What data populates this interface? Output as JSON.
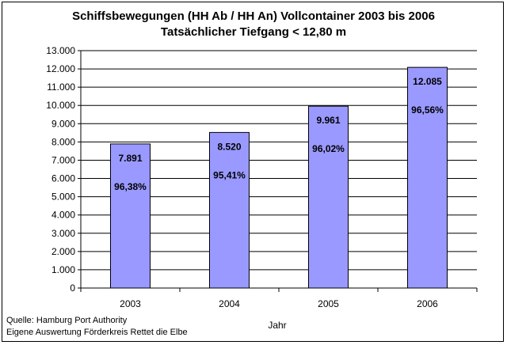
{
  "chart_data": {
    "type": "bar",
    "title": "Schiffsbewegungen (HH Ab / HH An) Vollcontainer  2003 bis 2006",
    "subtitle": "Tatsächlicher Tiefgang < 12,80 m",
    "categories": [
      "2003",
      "2004",
      "2005",
      "2006"
    ],
    "values": [
      7891,
      8520,
      9961,
      12085
    ],
    "value_labels": [
      "7.891",
      "8.520",
      "9.961",
      "12.085"
    ],
    "percent_labels": [
      "96,38%",
      "95,41%",
      "96,02%",
      "96,56%"
    ],
    "xlabel": "Jahr",
    "ylabel": "",
    "ylim": [
      0,
      13000
    ],
    "yticks": [
      0,
      1000,
      2000,
      3000,
      4000,
      5000,
      6000,
      7000,
      8000,
      9000,
      10000,
      11000,
      12000,
      13000
    ],
    "ytick_labels": [
      "0",
      "1.000",
      "2.000",
      "3.000",
      "4.000",
      "5.000",
      "6.000",
      "7.000",
      "8.000",
      "9.000",
      "10.000",
      "11.000",
      "12.000",
      "13.000"
    ],
    "grid": true,
    "bar_color": "#9999ff",
    "bar_border": "#000000"
  },
  "source": {
    "line1": "Quelle: Hamburg Port Authority",
    "line2": "Eigene Auswertung Förderkreis Rettet die Elbe"
  }
}
